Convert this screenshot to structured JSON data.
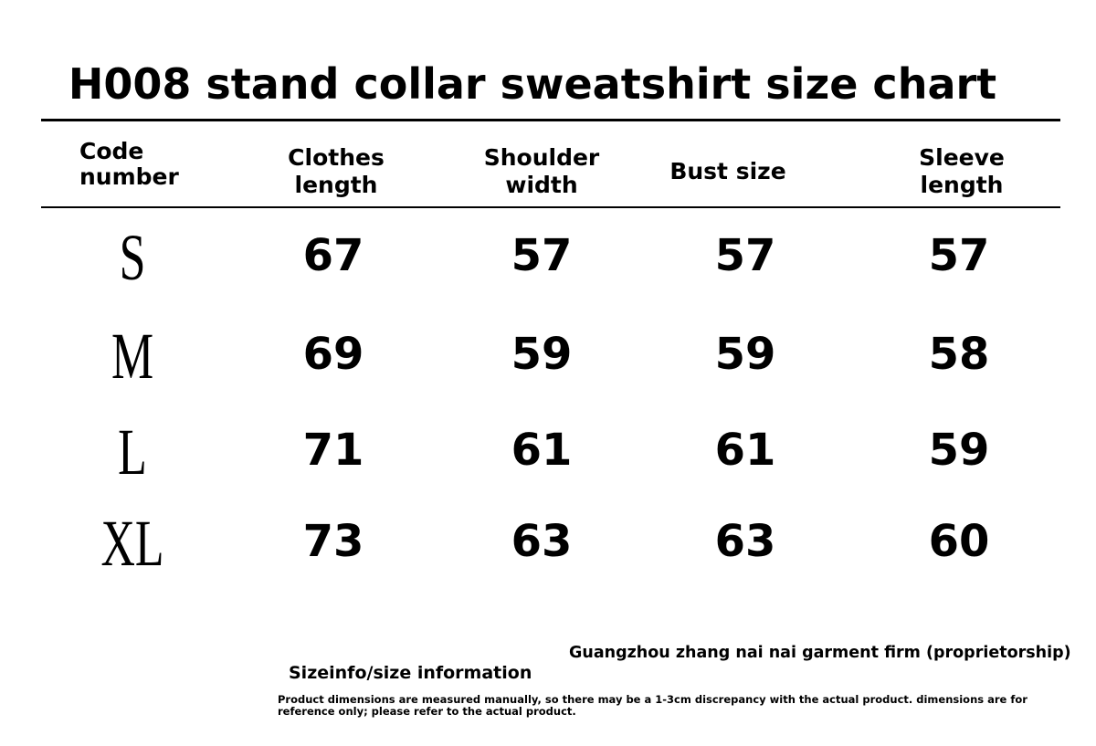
{
  "header": {
    "title": "H008 stand collar sweatshirt size chart"
  },
  "table": {
    "columns": [
      [
        "Code",
        "number"
      ],
      [
        "Clothes",
        "length"
      ],
      [
        "Shoulder",
        "width"
      ],
      [
        "Bust size"
      ],
      [
        "Sleeve",
        "length"
      ]
    ],
    "rows": [
      [
        "S",
        67,
        57,
        57,
        57
      ],
      [
        "M",
        69,
        59,
        59,
        58
      ],
      [
        "L",
        71,
        61,
        61,
        59
      ],
      [
        "XL",
        73,
        63,
        63,
        60
      ]
    ]
  },
  "footer": {
    "company": "Guangzhou zhang nai nai garment firm (proprietorship)",
    "label": "Sizeinfo/size information",
    "note": "Product dimensions are measured manually, so there may be a 1-3cm discrepancy with the actual product. dimensions are for reference only; please refer to the actual product."
  }
}
